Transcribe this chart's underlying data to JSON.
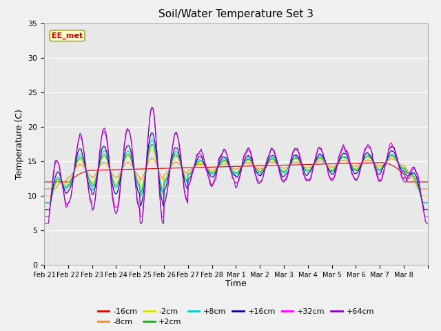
{
  "title": "Soil/Water Temperature Set 3",
  "xlabel": "Time",
  "ylabel": "Temperature (C)",
  "ylim": [
    0,
    35
  ],
  "yticks": [
    0,
    5,
    10,
    15,
    20,
    25,
    30,
    35
  ],
  "x_labels": [
    "Feb 21",
    "Feb 22",
    "Feb 23",
    "Feb 24",
    "Feb 25",
    "Feb 26",
    "Feb 27",
    "Feb 28",
    "Mar 1",
    "Mar 2",
    "Mar 3",
    "Mar 4",
    "Mar 5",
    "Mar 6",
    "Mar 7",
    "Mar 8"
  ],
  "series_colors": {
    "-16cm": "#dd0000",
    "-8cm": "#ff8800",
    "-2cm": "#dddd00",
    "+2cm": "#00bb00",
    "+8cm": "#00cccc",
    "+16cm": "#000099",
    "+32cm": "#ff00ff",
    "+64cm": "#8800bb"
  },
  "annotation_label": "EE_met",
  "annotation_color": "#cc0000",
  "annotation_bg": "#ffffcc",
  "fig_facecolor": "#f0f0f0",
  "plot_bg": "#e8e8e8",
  "figsize": [
    6.4,
    4.8
  ],
  "dpi": 100
}
